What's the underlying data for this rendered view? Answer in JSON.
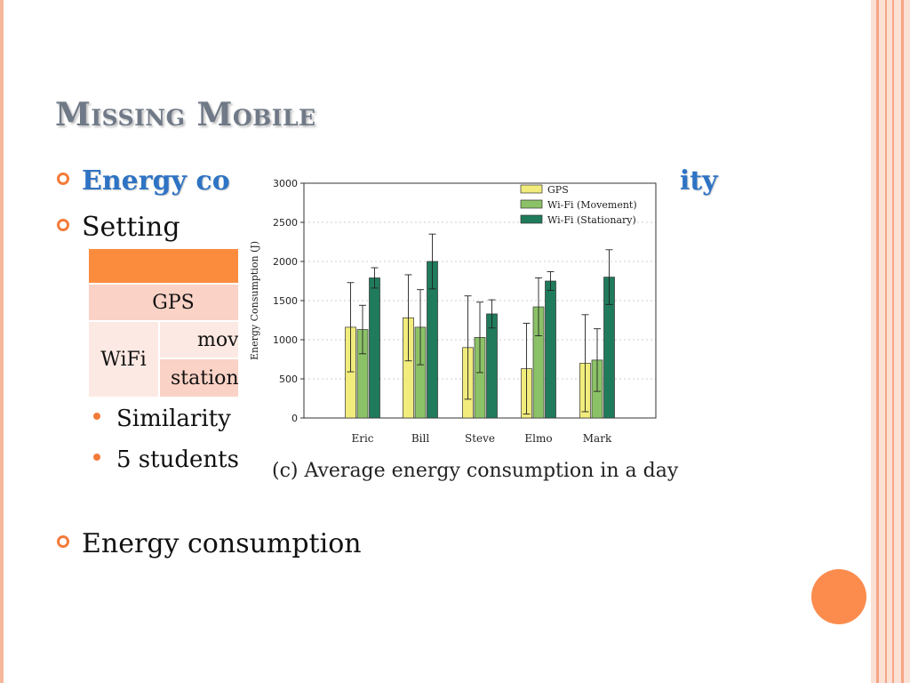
{
  "slide": {
    "title": "Missing Mobile",
    "bullets": {
      "energy_head": "Energy co",
      "energy_tail": "xity",
      "setting": "Setting",
      "similarity": "Similarity",
      "students": "5 students",
      "energy_consumption": "Energy consumption"
    },
    "table": {
      "gps": "GPS",
      "wifi": "WiFi",
      "movement": "mov",
      "stationary": "station"
    },
    "colors": {
      "accent": "#fb8c4e",
      "title": "#707987",
      "bullet_heading": "#2e73c4"
    }
  },
  "chart_data": {
    "type": "bar",
    "caption": "(c) Average energy consumption in a day",
    "ylabel": "Energy Consumption (J)",
    "xlabel": "",
    "ylim": [
      0,
      3000
    ],
    "yticks": [
      0,
      500,
      1000,
      1500,
      2000,
      2500,
      3000
    ],
    "grid": true,
    "legend_position": "top-right",
    "categories": [
      "Eric",
      "Bill",
      "Steve",
      "Elmo",
      "Mark"
    ],
    "series": [
      {
        "name": "GPS",
        "color": "#f1ec7c",
        "values": [
          1160,
          1280,
          900,
          630,
          700
        ],
        "error": [
          570,
          550,
          660,
          580,
          620
        ]
      },
      {
        "name": "Wi-Fi (Movement)",
        "color": "#8cc267",
        "values": [
          1130,
          1160,
          1030,
          1420,
          740
        ],
        "error": [
          310,
          480,
          450,
          370,
          400
        ]
      },
      {
        "name": "Wi-Fi (Stationary)",
        "color": "#1f7b5b",
        "values": [
          1790,
          2000,
          1330,
          1750,
          1800
        ],
        "error": [
          130,
          350,
          180,
          120,
          350
        ]
      }
    ]
  }
}
